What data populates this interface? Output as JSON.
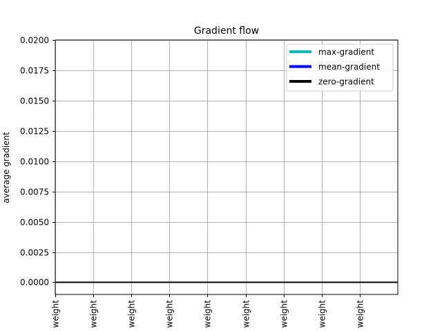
{
  "chart_data": {
    "type": "line",
    "title": "Gradient flow",
    "xlabel": "",
    "ylabel": "average gradient",
    "categories": [
      "weight",
      "weight",
      "weight",
      "weight",
      "weight",
      "weight",
      "weight",
      "weight",
      "weight"
    ],
    "xlim": [
      0,
      9
    ],
    "ylim": [
      -0.001,
      0.02
    ],
    "yticks": [
      0.0,
      0.0025,
      0.005,
      0.0075,
      0.01,
      0.0125,
      0.015,
      0.0175,
      0.02
    ],
    "ytick_labels": [
      "0.0000",
      "0.0025",
      "0.0050",
      "0.0075",
      "0.0100",
      "0.0125",
      "0.0150",
      "0.0175",
      "0.0200"
    ],
    "grid": true,
    "legend_position": "top-right",
    "legend": [
      {
        "label": "max-gradient",
        "color": "#00c0c0"
      },
      {
        "label": "mean-gradient",
        "color": "#0000ff"
      },
      {
        "label": "zero-gradient",
        "color": "#000000"
      }
    ],
    "hlines": [
      {
        "name": "zero-gradient",
        "y": 0.0,
        "color": "#000000"
      }
    ]
  }
}
